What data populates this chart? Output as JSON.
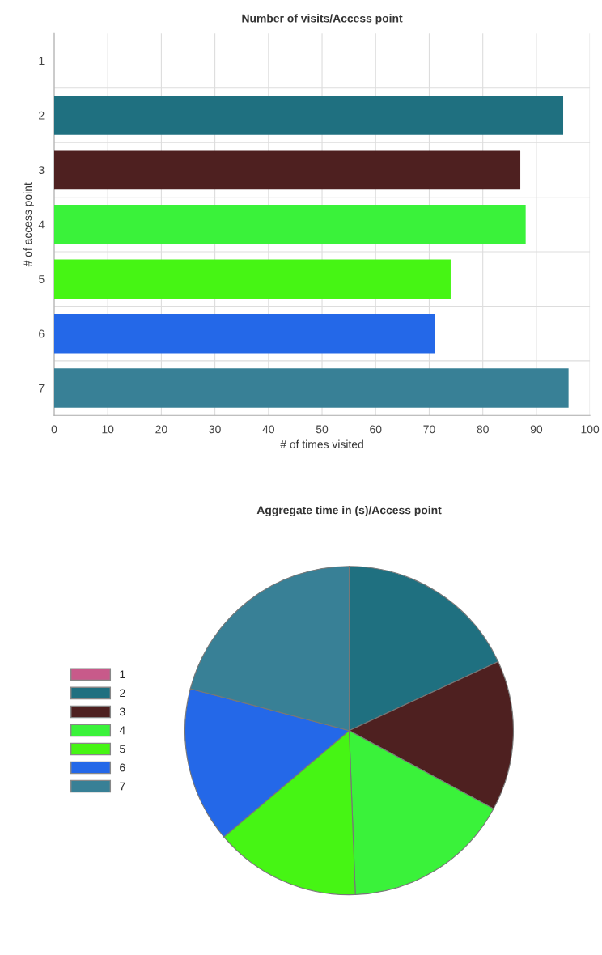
{
  "chart_data": [
    {
      "type": "bar",
      "orientation": "horizontal",
      "title": "Number of visits/Access point",
      "xlabel": "# of times visited",
      "ylabel": "# of access point",
      "categories": [
        "1",
        "2",
        "3",
        "4",
        "5",
        "6",
        "7"
      ],
      "values": [
        0,
        95,
        87,
        88,
        74,
        71,
        96
      ],
      "colors": [
        "#c85a8a",
        "#1f7080",
        "#4e2020",
        "#3af23a",
        "#46f514",
        "#2468e8",
        "#388096"
      ],
      "xlim": [
        0,
        100
      ],
      "xticks": [
        0,
        10,
        20,
        30,
        40,
        50,
        60,
        70,
        80,
        90,
        100
      ],
      "grid": true
    },
    {
      "type": "pie",
      "title": "Aggregate time in (s)/Access point",
      "categories": [
        "1",
        "2",
        "3",
        "4",
        "5",
        "6",
        "7"
      ],
      "values": [
        0,
        18.1,
        14.8,
        16.5,
        14.4,
        15.3,
        20.9
      ],
      "colors": [
        "#c85a8a",
        "#1f7080",
        "#4e2020",
        "#3af23a",
        "#46f514",
        "#2468e8",
        "#388096"
      ],
      "legend": "left"
    }
  ]
}
